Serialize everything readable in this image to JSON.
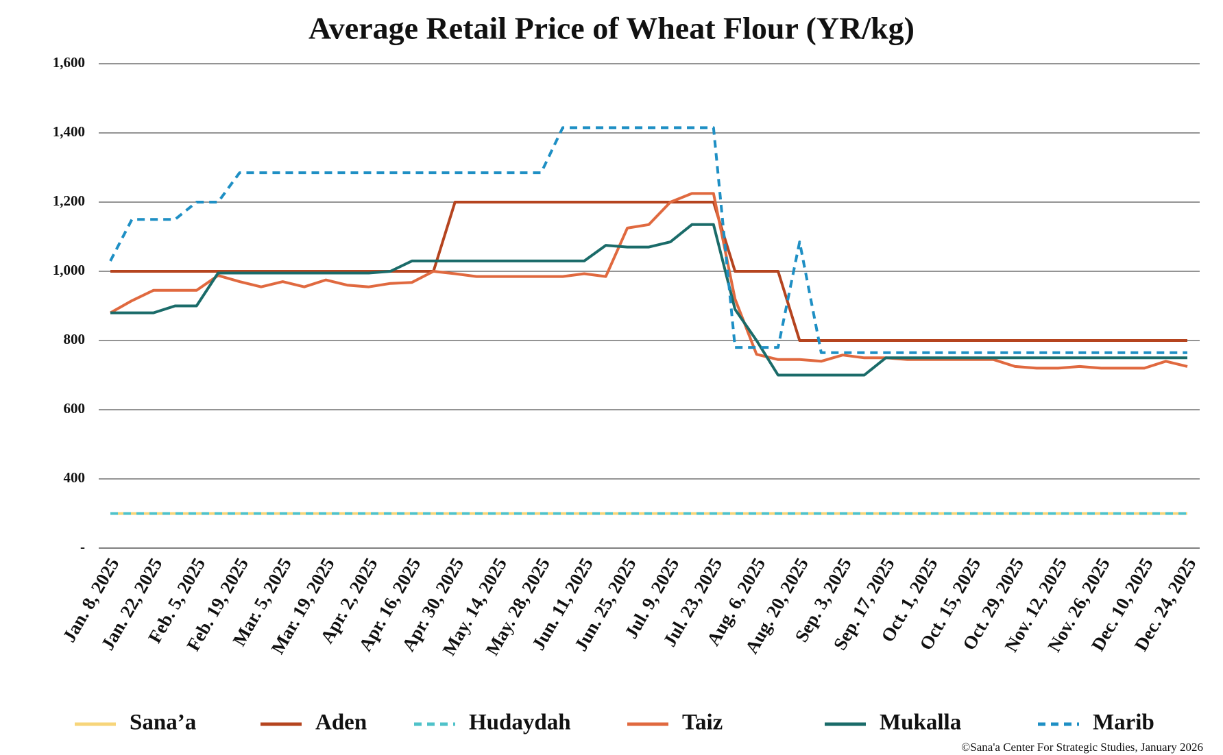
{
  "chart_data": {
    "type": "line",
    "title": "Average Retail Price of Wheat Flour (YR/kg)",
    "credit": "©Sana'a Center For Strategic Studies, January 2026",
    "categories": [
      "Jan. 8, 2025",
      null,
      "Jan. 22, 2025",
      null,
      "Feb. 5, 2025",
      null,
      "Feb. 19, 2025",
      null,
      "Mar. 5, 2025",
      null,
      "Mar. 19, 2025",
      null,
      "Apr. 2, 2025",
      null,
      "Apr. 16, 2025",
      null,
      "Apr. 30, 2025",
      null,
      "May. 14, 2025",
      null,
      "May. 28, 2025",
      null,
      "Jun. 11, 2025",
      null,
      "Jun. 25, 2025",
      null,
      "Jul. 9, 2025",
      null,
      "Jul. 23, 2025",
      null,
      "Aug. 6, 2025",
      null,
      "Aug. 20, 2025",
      null,
      "Sep. 3, 2025",
      null,
      "Sep. 17, 2025",
      null,
      "Oct. 1, 2025",
      null,
      "Oct. 15, 2025",
      null,
      "Oct. 29, 2025",
      null,
      "Nov. 12, 2025",
      null,
      "Nov. 26, 2025",
      null,
      "Dec. 10, 2025",
      null,
      "Dec. 24, 2025"
    ],
    "ylim": [
      200,
      1600
    ],
    "yticks": [
      {
        "value": 200,
        "label": "-"
      },
      400,
      600,
      800,
      {
        "value": 1000,
        "label": "1,000"
      },
      {
        "value": 1200,
        "label": "1,200"
      },
      {
        "value": 1400,
        "label": "1,400"
      },
      {
        "value": 1600,
        "label": "1,600"
      }
    ],
    "grid": true,
    "legend": "bottom",
    "series": [
      {
        "name": "Sana’a",
        "color": "#f7d57a",
        "dashed": false,
        "values": [
          300,
          300,
          300,
          300,
          300,
          300,
          300,
          300,
          300,
          300,
          300,
          300,
          300,
          300,
          300,
          300,
          300,
          300,
          300,
          300,
          300,
          300,
          300,
          300,
          300,
          300,
          300,
          300,
          300,
          300,
          300,
          300,
          300,
          300,
          300,
          300,
          300,
          300,
          300,
          300,
          300,
          300,
          300,
          300,
          300,
          300,
          300,
          300,
          300,
          300,
          300
        ]
      },
      {
        "name": "Aden",
        "color": "#b5441f",
        "dashed": false,
        "values": [
          1000,
          1000,
          1000,
          1000,
          1000,
          1000,
          1000,
          1000,
          1000,
          1000,
          1000,
          1000,
          1000,
          1000,
          1000,
          1000,
          1200,
          1200,
          1200,
          1200,
          1200,
          1200,
          1200,
          1200,
          1200,
          1200,
          1200,
          1200,
          1200,
          1000,
          1000,
          1000,
          800,
          800,
          800,
          800,
          800,
          800,
          800,
          800,
          800,
          800,
          800,
          800,
          800,
          800,
          800,
          800,
          800,
          800,
          800
        ]
      },
      {
        "name": "Hudaydah",
        "color": "#4fc2c9",
        "dashed": true,
        "values": [
          300,
          300,
          300,
          300,
          300,
          300,
          300,
          300,
          300,
          300,
          300,
          300,
          300,
          300,
          300,
          300,
          300,
          300,
          300,
          300,
          300,
          300,
          300,
          300,
          300,
          300,
          300,
          300,
          300,
          300,
          300,
          300,
          300,
          300,
          300,
          300,
          300,
          300,
          300,
          300,
          300,
          300,
          300,
          300,
          300,
          300,
          300,
          300,
          300,
          300,
          300
        ]
      },
      {
        "name": "Taiz",
        "color": "#e0693f",
        "dashed": false,
        "values": [
          880,
          915,
          945,
          945,
          945,
          988,
          970,
          955,
          970,
          955,
          975,
          960,
          955,
          965,
          968,
          1000,
          993,
          985,
          985,
          985,
          985,
          985,
          993,
          985,
          1125,
          1135,
          1200,
          1225,
          1225,
          920,
          760,
          745,
          745,
          740,
          758,
          750,
          750,
          745,
          745,
          745,
          745,
          745,
          725,
          720,
          720,
          725,
          720,
          720,
          720,
          740,
          725
        ]
      },
      {
        "name": "Mukalla",
        "color": "#1a6b69",
        "dashed": false,
        "values": [
          880,
          880,
          880,
          900,
          900,
          995,
          995,
          995,
          995,
          995,
          995,
          995,
          995,
          1000,
          1030,
          1030,
          1030,
          1030,
          1030,
          1030,
          1030,
          1030,
          1030,
          1075,
          1070,
          1070,
          1085,
          1135,
          1135,
          890,
          800,
          700,
          700,
          700,
          700,
          700,
          750,
          750,
          750,
          750,
          750,
          750,
          750,
          750,
          750,
          750,
          750,
          750,
          750,
          750,
          750
        ]
      },
      {
        "name": "Marib",
        "color": "#1e8fc4",
        "dashed": true,
        "values": [
          1030,
          1150,
          1150,
          1150,
          1200,
          1200,
          1285,
          1285,
          1285,
          1285,
          1285,
          1285,
          1285,
          1285,
          1285,
          1285,
          1285,
          1285,
          1285,
          1285,
          1285,
          1415,
          1415,
          1415,
          1415,
          1415,
          1415,
          1415,
          1415,
          780,
          780,
          780,
          1085,
          765,
          765,
          765,
          765,
          765,
          765,
          765,
          765,
          765,
          765,
          765,
          765,
          765,
          765,
          765,
          765,
          765,
          765
        ]
      }
    ]
  }
}
